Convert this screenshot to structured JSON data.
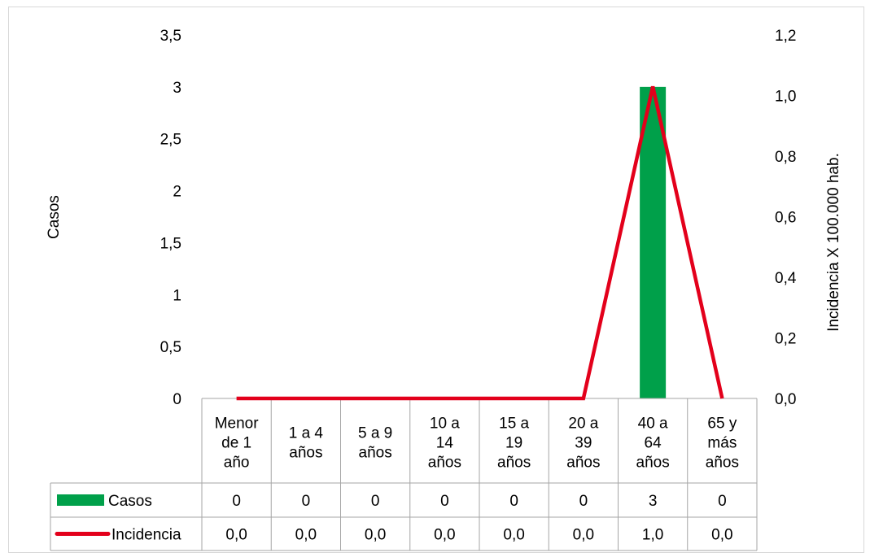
{
  "chart_data": {
    "type": "bar+line",
    "categories": [
      [
        "Menor",
        "de 1",
        "año"
      ],
      [
        "1 a 4",
        "años"
      ],
      [
        "5 a 9",
        "años"
      ],
      [
        "10 a",
        "14",
        "años"
      ],
      [
        "15 a",
        "19",
        "años"
      ],
      [
        "20 a",
        "39",
        "años"
      ],
      [
        "40 a",
        "64",
        "años"
      ],
      [
        "65 y",
        "más",
        "años"
      ]
    ],
    "series": [
      {
        "name": "Casos",
        "type": "bar",
        "axis": "left",
        "color": "#00a04a",
        "values": [
          0,
          0,
          0,
          0,
          0,
          0,
          3,
          0
        ],
        "labels": [
          "0",
          "0",
          "0",
          "0",
          "0",
          "0",
          "3",
          "0"
        ]
      },
      {
        "name": "Incidencia",
        "type": "line",
        "axis": "right",
        "color": "#e3001b",
        "values": [
          0.0,
          0.0,
          0.0,
          0.0,
          0.0,
          0.0,
          1.03,
          0.0
        ],
        "labels": [
          "0,0",
          "0,0",
          "0,0",
          "0,0",
          "0,0",
          "0,0",
          "1,0",
          "0,0"
        ]
      }
    ],
    "ylabel": "Casos",
    "y2label": "Incidencia X 100.000  hab.",
    "ylim": [
      0,
      3.5
    ],
    "y2lim": [
      0,
      1.2
    ],
    "yticks": [
      "0",
      "0,5",
      "1",
      "1,5",
      "2",
      "2,5",
      "3",
      "3,5"
    ],
    "y2ticks": [
      "0,0",
      "0,2",
      "0,4",
      "0,6",
      "0,8",
      "1,0",
      "1,2"
    ],
    "grid": false,
    "legend": "data-table"
  }
}
